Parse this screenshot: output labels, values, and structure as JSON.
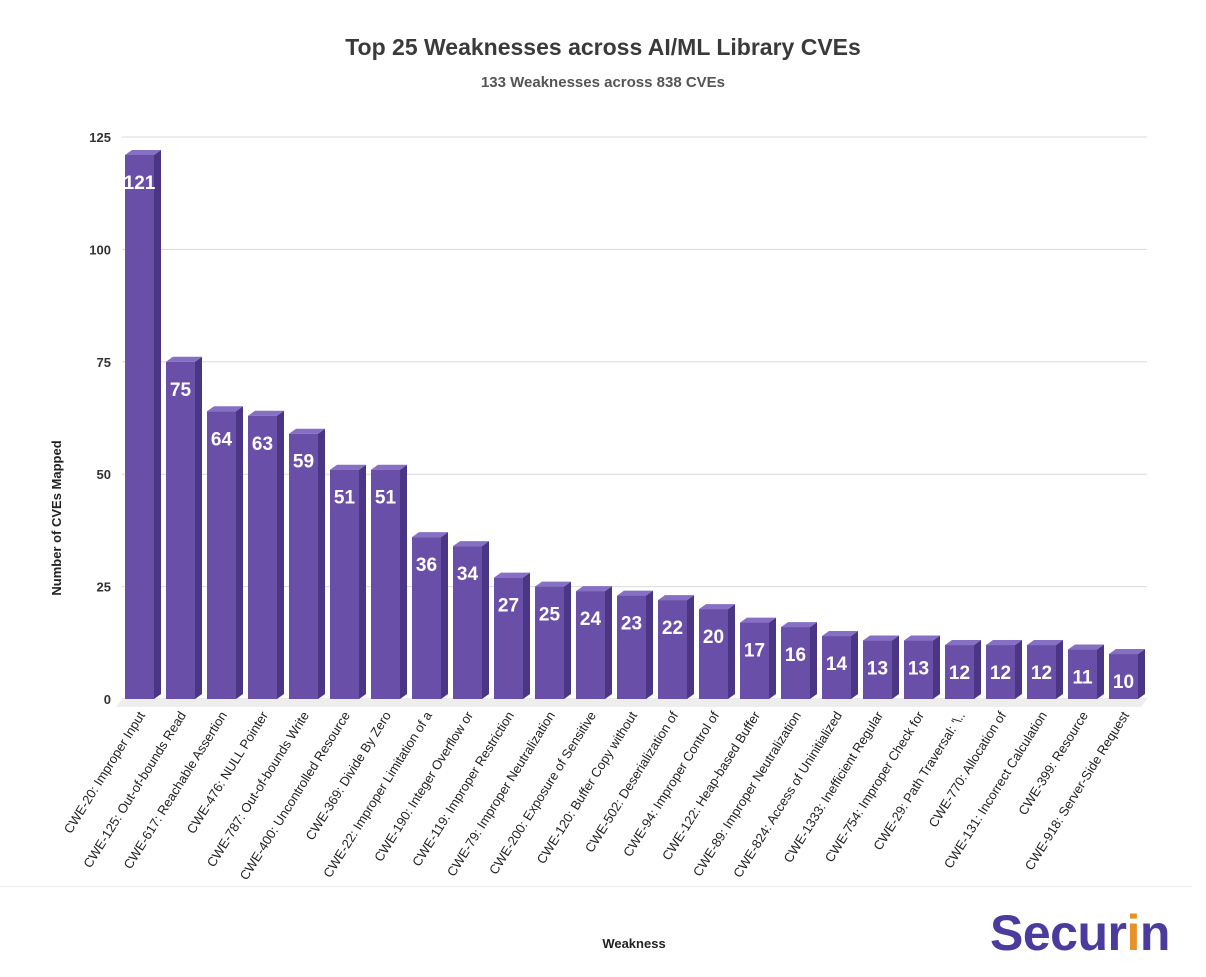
{
  "chart_data": {
    "type": "bar",
    "title": "Top 25 Weaknesses across AI/ML Library CVEs",
    "subtitle": "133 Weaknesses across 838 CVEs",
    "xlabel": "Weakness",
    "ylabel": "Number of CVEs Mapped",
    "ylim": [
      0,
      125
    ],
    "yticks": [
      0,
      25,
      50,
      75,
      100,
      125
    ],
    "grid": true,
    "bar_color": "#6a4fa8",
    "categories": [
      "CWE-20: Improper Input",
      "CWE-125: Out-of-bounds Read",
      "CWE-617: Reachable Assertion",
      "CWE-476: NULL Pointer",
      "CWE-787: Out-of-bounds Write",
      "CWE-400: Uncontrolled Resource",
      "CWE-369: Divide By Zero",
      "CWE-22: Improper Limitation of a",
      "CWE-190: Integer Overflow or",
      "CWE-119: Improper Restriction",
      "CWE-79: Improper Neutralization",
      "CWE-200: Exposure of Sensitive",
      "CWE-120: Buffer Copy without",
      "CWE-502: Deserialization of",
      "CWE-94: Improper Control of",
      "CWE-122: Heap-based Buffer",
      "CWE-89: Improper Neutralization",
      "CWE-824: Access of Uninitialized",
      "CWE-1333: Inefficient Regular",
      "CWE-754: Improper Check for",
      "CWE-29: Path Traversal: '\\..",
      "CWE-770: Allocation of",
      "CWE-131: Incorrect Calculation",
      "CWE-399: Resource",
      "CWE-918: Server-Side Request"
    ],
    "values": [
      121,
      75,
      64,
      63,
      59,
      51,
      51,
      36,
      34,
      27,
      25,
      24,
      23,
      22,
      20,
      17,
      16,
      14,
      13,
      13,
      12,
      12,
      12,
      11,
      10
    ]
  },
  "brand": {
    "logo_main": "Secur",
    "logo_accent": "i",
    "logo_tail": "n",
    "logo_text": "Securin"
  }
}
